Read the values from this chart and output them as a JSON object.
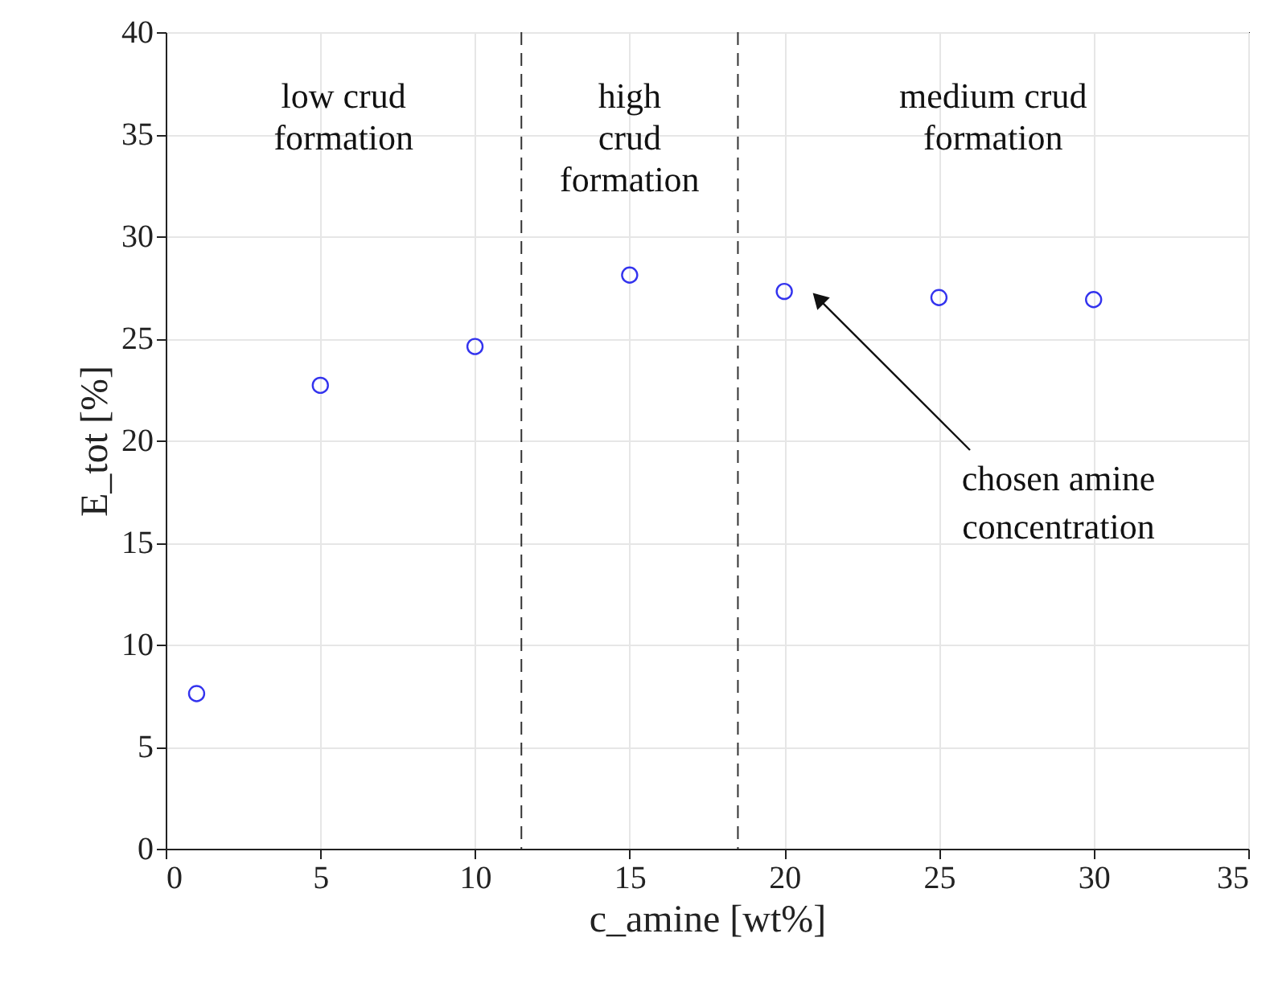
{
  "chart_data": {
    "type": "scatter",
    "xlabel": "c_amine [wt%]",
    "ylabel": "E_tot [%]",
    "x": [
      1,
      5,
      10,
      15,
      20,
      25,
      30
    ],
    "series": [
      {
        "color": "#3333ee",
        "values": [
          7.6,
          22.7,
          24.6,
          28.1,
          27.3,
          27.0,
          26.9
        ]
      }
    ],
    "xlim": [
      0,
      35
    ],
    "ylim": [
      0,
      40
    ],
    "xticks": [
      0,
      5,
      10,
      15,
      20,
      25,
      30,
      35
    ],
    "yticks": [
      0,
      5,
      10,
      15,
      20,
      25,
      30,
      35,
      40
    ],
    "grid": true,
    "marker": "circle",
    "ref_lines": [
      {
        "axis": "x",
        "value": 11.5,
        "color": "#333333",
        "line_style": "dashed"
      },
      {
        "axis": "x",
        "value": 18.5,
        "color": "#333333",
        "line_style": "dashed"
      }
    ],
    "annotations": [
      "low crud\nformation",
      "high\ncrud\nformation",
      "medium crud\nformation",
      "chosen amine\nconcentration"
    ]
  }
}
